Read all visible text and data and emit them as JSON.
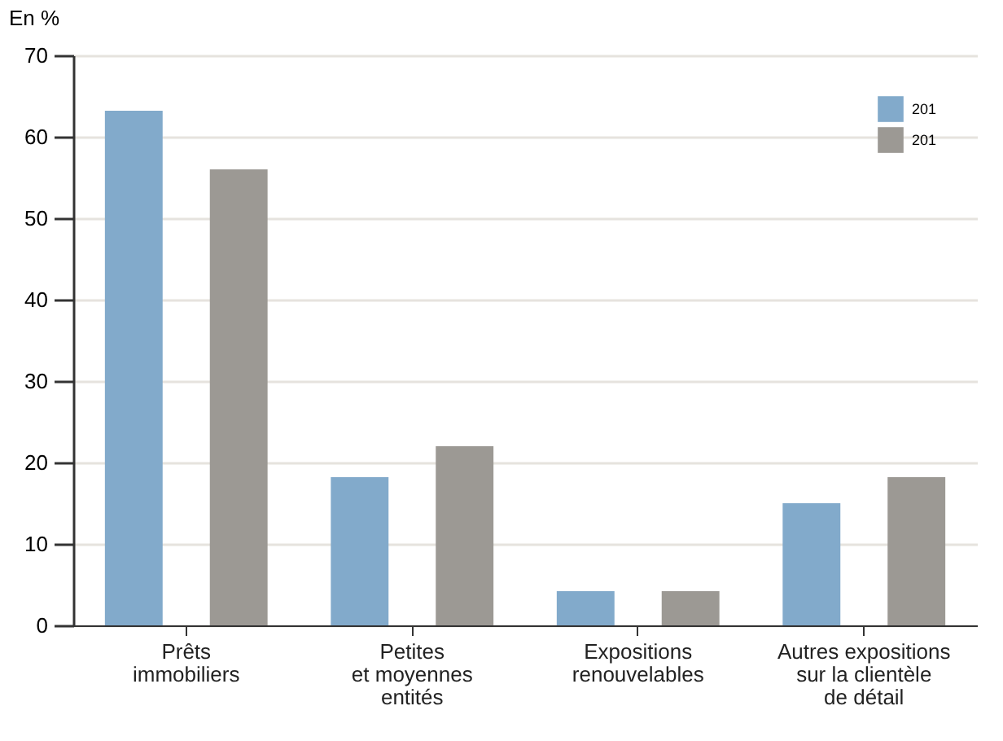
{
  "chart_data": {
    "type": "bar",
    "ylabel": "En %",
    "categories": [
      "Prêts\nimmobiliers",
      "Petites\net moyennes\nentités",
      "Expositions\nrenouvelables",
      "Autres expositions\nsur la clientèle\nde détail"
    ],
    "series": [
      {
        "name": "201",
        "color": "#82aacb",
        "values": [
          63.2,
          18.2,
          4.2,
          15
        ]
      },
      {
        "name": "201",
        "color": "#9c9994",
        "values": [
          56,
          22,
          4.2,
          18.2
        ]
      }
    ],
    "ylim": [
      0,
      70
    ],
    "yticks": [
      0,
      10,
      20,
      30,
      40,
      50,
      60,
      70
    ],
    "grid": "y",
    "legend": "top right"
  }
}
